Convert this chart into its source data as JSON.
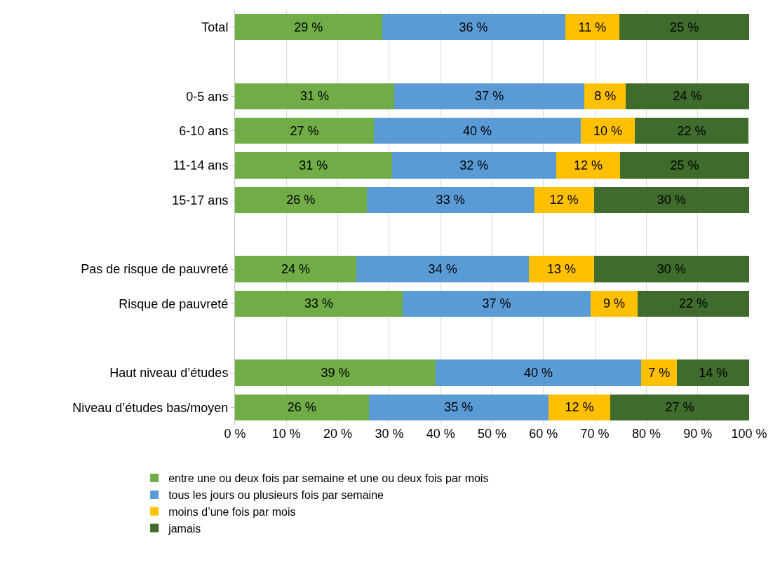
{
  "chart_data": {
    "type": "bar",
    "orientation": "horizontal",
    "stacked": true,
    "categories": [
      "Total",
      null,
      "0-5 ans",
      "6-10 ans",
      "11-14 ans",
      "15-17 ans",
      null,
      "Pas de risque de pauvreté",
      "Risque de pauvreté",
      null,
      "Haut niveau d’études",
      "Niveau d’études bas/moyen"
    ],
    "series": [
      {
        "name": "entre une ou deux fois par semaine et une ou deux fois par mois",
        "color": "#70ad47",
        "values": [
          28.6,
          null,
          31,
          27,
          30.5,
          25.6,
          null,
          23.6,
          32.6,
          null,
          39,
          26
        ],
        "value_labels": [
          "29 %",
          null,
          "31 %",
          "27 %",
          "31 %",
          "26 %",
          null,
          "24 %",
          "33 %",
          null,
          "39 %",
          "26 %"
        ]
      },
      {
        "name": "tous les jours ou plusieurs fois par semaine",
        "color": "#5b9bd5",
        "values": [
          35.6,
          null,
          37,
          40.3,
          32,
          32.6,
          null,
          33.6,
          36.6,
          null,
          40,
          35
        ],
        "value_labels": [
          "36 %",
          null,
          "37 %",
          "40 %",
          "32 %",
          "33 %",
          null,
          "34 %",
          "37 %",
          null,
          "40 %",
          "35 %"
        ]
      },
      {
        "name": "moins d’une fois par mois",
        "color": "#ffc000",
        "values": [
          10.6,
          null,
          8,
          10.4,
          12.4,
          11.6,
          null,
          12.6,
          9.1,
          null,
          7,
          12
        ],
        "value_labels": [
          "11 %",
          null,
          "8 %",
          "10 %",
          "12 %",
          "12 %",
          null,
          "13 %",
          "9 %",
          null,
          "7 %",
          "12 %"
        ]
      },
      {
        "name": "jamais",
        "color": "#3f6b2c",
        "values": [
          25.2,
          null,
          24,
          22.2,
          25.1,
          30.2,
          null,
          30.2,
          21.7,
          null,
          14,
          27
        ],
        "value_labels": [
          "25 %",
          null,
          "24 %",
          "22 %",
          "25 %",
          "30 %",
          null,
          "30 %",
          "22 %",
          null,
          "14 %",
          "27 %"
        ]
      }
    ],
    "xlim": [
      0,
      100
    ],
    "xticks": [
      {
        "value": 0,
        "label": "0 %"
      },
      {
        "value": 10,
        "label": "10 %"
      },
      {
        "value": 20,
        "label": "20 %"
      },
      {
        "value": 30,
        "label": "30 %"
      },
      {
        "value": 40,
        "label": "40 %"
      },
      {
        "value": 50,
        "label": "50 %"
      },
      {
        "value": 60,
        "label": "60 %"
      },
      {
        "value": 70,
        "label": "70 %"
      },
      {
        "value": 80,
        "label": "80 %"
      },
      {
        "value": 90,
        "label": "90 %"
      },
      {
        "value": 100,
        "label": "100 %"
      }
    ],
    "grid": "x",
    "legend": "bottom"
  }
}
